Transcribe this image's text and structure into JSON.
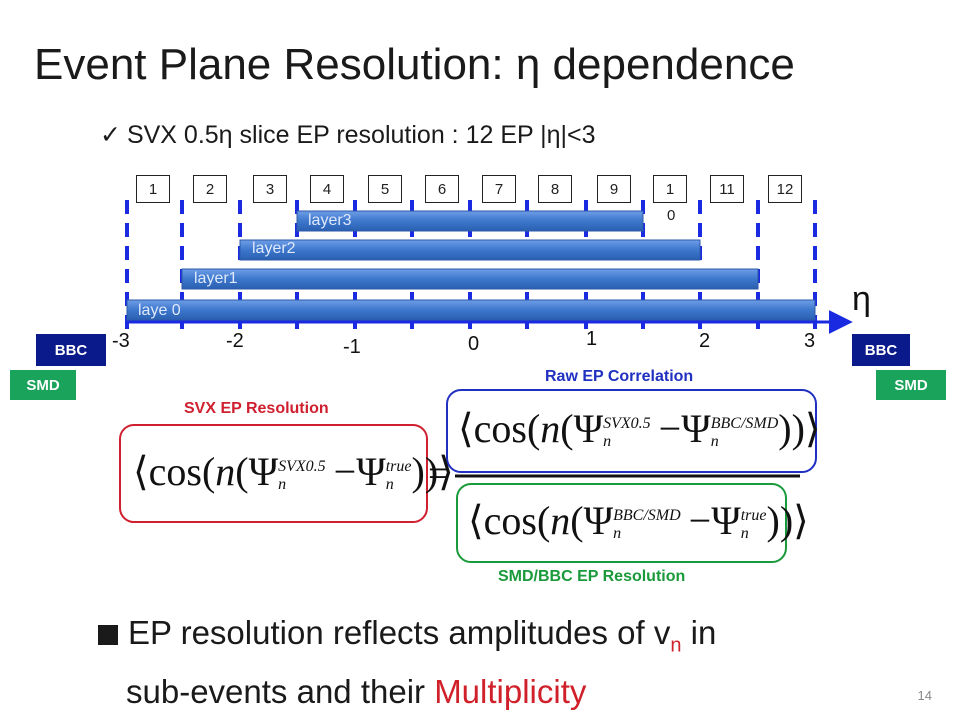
{
  "title": "Event Plane Resolution: η dependence",
  "bullet1": "SVX 0.5η slice EP resolution : 12 EP |η|<3",
  "slices": [
    "1",
    "2",
    "3",
    "4",
    "5",
    "6",
    "7",
    "8",
    "9",
    "1",
    "11",
    "12"
  ],
  "slice10_extra": "0",
  "layers": [
    "layer3",
    "layer2",
    "layer1",
    "laye 0"
  ],
  "axis_ticks": [
    "-3",
    "-2",
    "-1",
    "0",
    "1",
    "2",
    "3"
  ],
  "axis_symbol": "η",
  "detectors": {
    "bbc": "BBC",
    "smd": "SMD"
  },
  "labels": {
    "svx_resolution": "SVX EP Resolution",
    "raw_correlation": "Raw EP Correlation",
    "smd_bbc_resolution": "SMD/BBC  EP Resolution"
  },
  "formula": {
    "svx_sup": "SVX0.5",
    "true_sup": "true",
    "bbc_sup": "BBC/SMD",
    "cos": "cos",
    "n": "n",
    "psi": "Ψ",
    "equals": "="
  },
  "bullet2": {
    "part1": "EP resolution reflects amplitudes of v",
    "sub": "n",
    "part2": " in",
    "line2a": "sub-events and their ",
    "highlight": "Multiplicity"
  },
  "page_number": "14",
  "colors": {
    "layer_bar": "#3d77cc",
    "dash": "#1a2ae0",
    "bbc": "#0b1a8a",
    "smd": "#1aa35a",
    "red": "#d02030"
  }
}
